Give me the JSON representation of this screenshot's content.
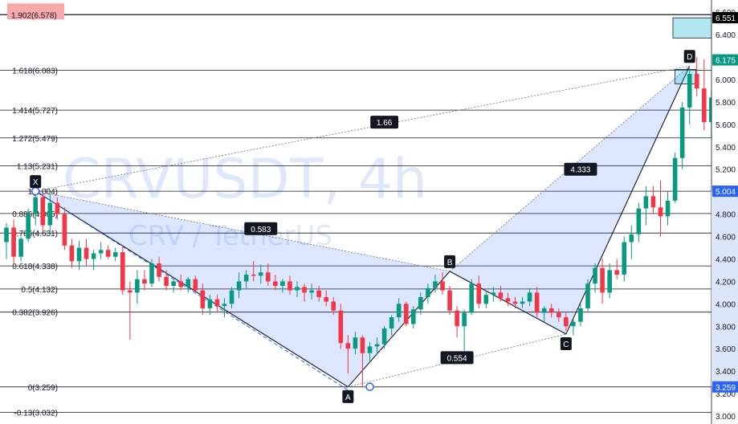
{
  "watermark": {
    "symbol": "CRVUSDT, 4h",
    "pair": "CRV / TetherUS"
  },
  "chart_data": {
    "type": "candlestick",
    "symbol": "CRVUSDT",
    "timeframe": "4h",
    "ylim": [
      3.0,
      6.62
    ],
    "y_ticks": [
      3.0,
      3.2,
      3.4,
      3.6,
      3.8,
      4.0,
      4.2,
      4.4,
      4.6,
      4.8,
      5.2,
      5.4,
      5.6,
      5.8,
      6.0,
      6.4,
      6.6
    ],
    "y_tick_labels": [
      "3.000",
      "3.200",
      "3.400",
      "3.600",
      "3.800",
      "4.000",
      "4.200",
      "4.400",
      "4.600",
      "4.800",
      "5.200",
      "5.400",
      "5.600",
      "5.800",
      "6.000",
      "6.400",
      "6.600"
    ],
    "price_tags": [
      {
        "value": 6.551,
        "label": "6.551",
        "color": "#000000"
      },
      {
        "value": 6.175,
        "label": "6.175",
        "color": "#089981"
      },
      {
        "value": 5.004,
        "label": "5.004",
        "color": "#2962ff"
      },
      {
        "value": 3.259,
        "label": "3.259",
        "color": "#2962ff"
      }
    ],
    "fib_levels": [
      {
        "value": 6.578,
        "label": "1.902(6.578)",
        "highlight": true
      },
      {
        "value": 6.083,
        "label": "1.618(6.083)"
      },
      {
        "value": 5.727,
        "label": "1.414(5.727)"
      },
      {
        "value": 5.479,
        "label": "1.272(5.479)"
      },
      {
        "value": 5.231,
        "label": "1.13(5.231)"
      },
      {
        "value": 5.004,
        "label": "1(5.004)"
      },
      {
        "value": 4.805,
        "label": "0.886(4.805)"
      },
      {
        "value": 4.631,
        "label": "0.786(4.631)"
      },
      {
        "value": 4.338,
        "label": "0.618(4.338)"
      },
      {
        "value": 4.132,
        "label": "0.5(4.132)"
      },
      {
        "value": 3.926,
        "label": "0.382(3.926)"
      },
      {
        "value": 3.259,
        "label": "0(3.259)"
      },
      {
        "value": 3.032,
        "label": "-0.13(3.032)"
      }
    ],
    "pattern_points": [
      {
        "label": "X",
        "bar": 4,
        "price": 5.004
      },
      {
        "label": "A",
        "bar": 47,
        "price": 3.259
      },
      {
        "label": "B",
        "bar": 61,
        "price": 4.29
      },
      {
        "label": "C",
        "bar": 77,
        "price": 3.73
      },
      {
        "label": "D",
        "bar": 94,
        "price": 6.12
      }
    ],
    "ratios": [
      {
        "label": "0.583",
        "bar": 35,
        "price": 4.67
      },
      {
        "label": "1.66",
        "bar": 52,
        "price": 5.62
      },
      {
        "label": "4.333",
        "bar": 79,
        "price": 5.2
      },
      {
        "label": "0.554",
        "bar": 62,
        "price": 3.52
      }
    ],
    "candles": [
      [
        4.55,
        4.72,
        4.4,
        4.68
      ],
      [
        4.68,
        4.75,
        4.35,
        4.42
      ],
      [
        4.42,
        4.6,
        4.38,
        4.58
      ],
      [
        4.58,
        4.85,
        4.55,
        4.8
      ],
      [
        4.8,
        5.0,
        4.7,
        4.95
      ],
      [
        4.95,
        5.0,
        4.65,
        4.7
      ],
      [
        4.7,
        4.98,
        4.62,
        4.9
      ],
      [
        4.9,
        4.95,
        4.75,
        4.8
      ],
      [
        4.8,
        4.86,
        4.48,
        4.52
      ],
      [
        4.52,
        4.58,
        4.32,
        4.38
      ],
      [
        4.38,
        4.56,
        4.3,
        4.5
      ],
      [
        4.5,
        4.58,
        4.34,
        4.4
      ],
      [
        4.4,
        4.48,
        4.3,
        4.45
      ],
      [
        4.45,
        4.55,
        4.4,
        4.48
      ],
      [
        4.48,
        4.52,
        4.4,
        4.42
      ],
      [
        4.42,
        4.5,
        4.38,
        4.46
      ],
      [
        4.46,
        4.52,
        4.08,
        4.12
      ],
      [
        4.12,
        4.2,
        3.68,
        4.1
      ],
      [
        4.1,
        4.3,
        4.0,
        4.22
      ],
      [
        4.22,
        4.3,
        4.12,
        4.18
      ],
      [
        4.18,
        4.4,
        4.15,
        4.36
      ],
      [
        4.36,
        4.42,
        4.2,
        4.24
      ],
      [
        4.24,
        4.3,
        4.12,
        4.16
      ],
      [
        4.16,
        4.22,
        4.1,
        4.2
      ],
      [
        4.2,
        4.26,
        4.12,
        4.15
      ],
      [
        4.15,
        4.24,
        4.1,
        4.22
      ],
      [
        4.22,
        4.25,
        4.1,
        4.12
      ],
      [
        4.12,
        4.18,
        3.9,
        3.96
      ],
      [
        3.96,
        4.08,
        3.9,
        4.04
      ],
      [
        4.04,
        4.08,
        3.92,
        3.98
      ],
      [
        3.98,
        4.05,
        3.88,
        4.0
      ],
      [
        4.0,
        4.15,
        3.96,
        4.12
      ],
      [
        4.12,
        4.28,
        4.05,
        4.2
      ],
      [
        4.2,
        4.3,
        4.14,
        4.26
      ],
      [
        4.26,
        4.38,
        4.2,
        4.25
      ],
      [
        4.25,
        4.35,
        4.18,
        4.28
      ],
      [
        4.28,
        4.36,
        4.16,
        4.2
      ],
      [
        4.2,
        4.26,
        4.12,
        4.16
      ],
      [
        4.16,
        4.22,
        4.1,
        4.2
      ],
      [
        4.2,
        4.25,
        4.08,
        4.12
      ],
      [
        4.12,
        4.2,
        4.06,
        4.15
      ],
      [
        4.15,
        4.18,
        4.02,
        4.1
      ],
      [
        4.1,
        4.18,
        4.04,
        4.12
      ],
      [
        4.12,
        4.16,
        4.02,
        4.06
      ],
      [
        4.06,
        4.12,
        3.98,
        4.02
      ],
      [
        4.02,
        4.06,
        3.9,
        3.94
      ],
      [
        3.94,
        4.0,
        3.6,
        3.65
      ],
      [
        3.65,
        3.72,
        3.38,
        3.6
      ],
      [
        3.6,
        3.75,
        3.55,
        3.7
      ],
      [
        3.7,
        3.72,
        3.26,
        3.56
      ],
      [
        3.56,
        3.66,
        3.48,
        3.62
      ],
      [
        3.62,
        3.7,
        3.55,
        3.64
      ],
      [
        3.64,
        3.8,
        3.6,
        3.78
      ],
      [
        3.78,
        3.9,
        3.72,
        3.88
      ],
      [
        3.88,
        4.05,
        3.84,
        4.0
      ],
      [
        4.0,
        4.02,
        3.8,
        3.82
      ],
      [
        3.82,
        3.98,
        3.78,
        3.95
      ],
      [
        3.95,
        4.1,
        3.9,
        4.06
      ],
      [
        4.06,
        4.18,
        4.0,
        4.14
      ],
      [
        4.14,
        4.26,
        4.1,
        4.2
      ],
      [
        4.2,
        4.28,
        4.08,
        4.12
      ],
      [
        4.12,
        4.16,
        3.9,
        3.94
      ],
      [
        3.94,
        3.98,
        3.7,
        3.8
      ],
      [
        3.8,
        3.95,
        3.58,
        3.92
      ],
      [
        3.92,
        4.22,
        3.9,
        4.18
      ],
      [
        4.18,
        4.25,
        3.96,
        4.0
      ],
      [
        4.0,
        4.12,
        3.96,
        4.08
      ],
      [
        4.08,
        4.15,
        4.02,
        4.1
      ],
      [
        4.1,
        4.16,
        4.02,
        4.05
      ],
      [
        4.05,
        4.1,
        3.98,
        4.02
      ],
      [
        4.02,
        4.06,
        3.96,
        4.0
      ],
      [
        4.0,
        4.06,
        3.96,
        4.02
      ],
      [
        4.02,
        4.14,
        3.98,
        4.1
      ],
      [
        4.1,
        4.15,
        3.88,
        3.92
      ],
      [
        3.92,
        3.98,
        3.84,
        3.96
      ],
      [
        3.96,
        4.0,
        3.88,
        3.92
      ],
      [
        3.92,
        3.96,
        3.84,
        3.88
      ],
      [
        3.88,
        3.92,
        3.76,
        3.8
      ],
      [
        3.8,
        3.86,
        3.72,
        3.84
      ],
      [
        3.84,
        4.0,
        3.8,
        3.96
      ],
      [
        3.96,
        4.22,
        3.92,
        4.18
      ],
      [
        4.18,
        4.36,
        4.1,
        4.32
      ],
      [
        4.32,
        4.4,
        4.0,
        4.1
      ],
      [
        4.1,
        4.36,
        4.05,
        4.3
      ],
      [
        4.3,
        4.4,
        4.22,
        4.26
      ],
      [
        4.26,
        4.6,
        4.2,
        4.55
      ],
      [
        4.55,
        4.7,
        4.4,
        4.62
      ],
      [
        4.62,
        4.9,
        4.55,
        4.85
      ],
      [
        4.85,
        5.05,
        4.7,
        4.96
      ],
      [
        4.96,
        5.05,
        4.8,
        4.86
      ],
      [
        4.86,
        5.1,
        4.6,
        4.78
      ],
      [
        4.78,
        5.0,
        4.7,
        4.92
      ],
      [
        4.92,
        5.35,
        4.9,
        5.3
      ],
      [
        5.3,
        5.8,
        5.2,
        5.75
      ],
      [
        5.75,
        6.1,
        5.6,
        6.05
      ],
      [
        6.05,
        6.2,
        5.85,
        5.92
      ],
      [
        5.92,
        6.18,
        5.55,
        5.62
      ],
      [
        5.62,
        5.9,
        5.48,
        5.84
      ],
      [
        5.84,
        6.2,
        5.8,
        6.175
      ]
    ]
  }
}
